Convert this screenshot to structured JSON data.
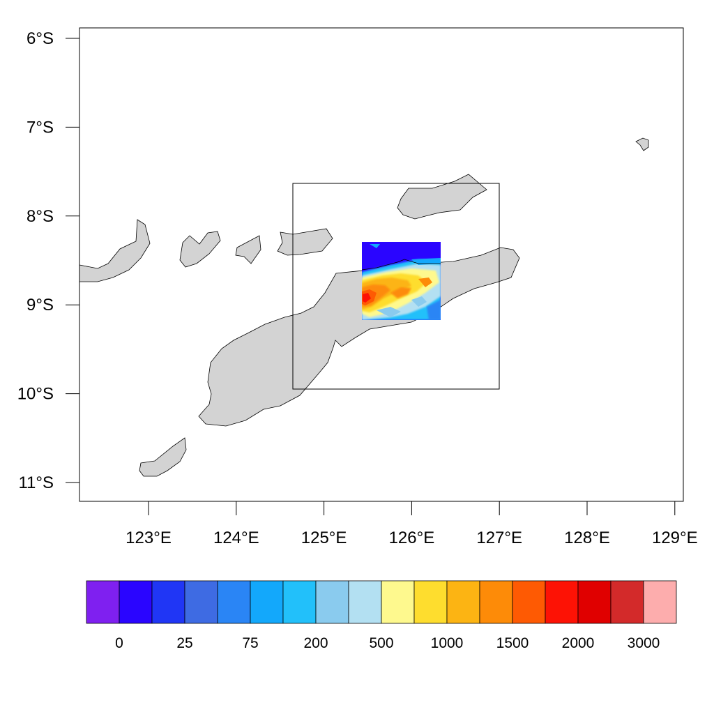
{
  "map": {
    "lon_range": [
      122.2,
      129.1
    ],
    "lat_range": [
      -11.2,
      -5.9
    ],
    "land_color": "#d3d3d3",
    "coast_color": "#000000",
    "domain_box": {
      "lon": [
        124.65,
        127.0
      ],
      "lat": [
        -9.95,
        -7.65
      ]
    },
    "topography_region": {
      "lon": [
        125.45,
        126.32
      ],
      "lat": [
        -9.18,
        -8.3
      ]
    },
    "lat_ticks": [
      {
        "value": -6,
        "label": "6°S"
      },
      {
        "value": -7,
        "label": "7°S"
      },
      {
        "value": -8,
        "label": "8°S"
      },
      {
        "value": -9,
        "label": "9°S"
      },
      {
        "value": -10,
        "label": "10°S"
      },
      {
        "value": -11,
        "label": "11°S"
      }
    ],
    "lon_ticks": [
      {
        "value": 123,
        "label": "123°E"
      },
      {
        "value": 124,
        "label": "124°E"
      },
      {
        "value": 125,
        "label": "125°E"
      },
      {
        "value": 126,
        "label": "126°E"
      },
      {
        "value": 127,
        "label": "127°E"
      },
      {
        "value": 128,
        "label": "128°E"
      },
      {
        "value": 129,
        "label": "129°E"
      }
    ]
  },
  "colorbar": {
    "colors": [
      "#7f20f0",
      "#2a05ff",
      "#2036f5",
      "#3e6be3",
      "#2a85f5",
      "#13a8fb",
      "#22c0fa",
      "#8acbee",
      "#b3e0f2",
      "#fef98e",
      "#fedd2e",
      "#fcb413",
      "#fd8b08",
      "#fe5a03",
      "#fd1205",
      "#e00000",
      "#d32a2a",
      "#fdadad"
    ],
    "labels": [
      {
        "after_box": 1,
        "text": "0"
      },
      {
        "after_box": 3,
        "text": "25"
      },
      {
        "after_box": 5,
        "text": "75"
      },
      {
        "after_box": 7,
        "text": "200"
      },
      {
        "after_box": 9,
        "text": "500"
      },
      {
        "after_box": 11,
        "text": "1000"
      },
      {
        "after_box": 13,
        "text": "1500"
      },
      {
        "after_box": 15,
        "text": "2000"
      },
      {
        "after_box": 17,
        "text": "3000"
      }
    ]
  }
}
